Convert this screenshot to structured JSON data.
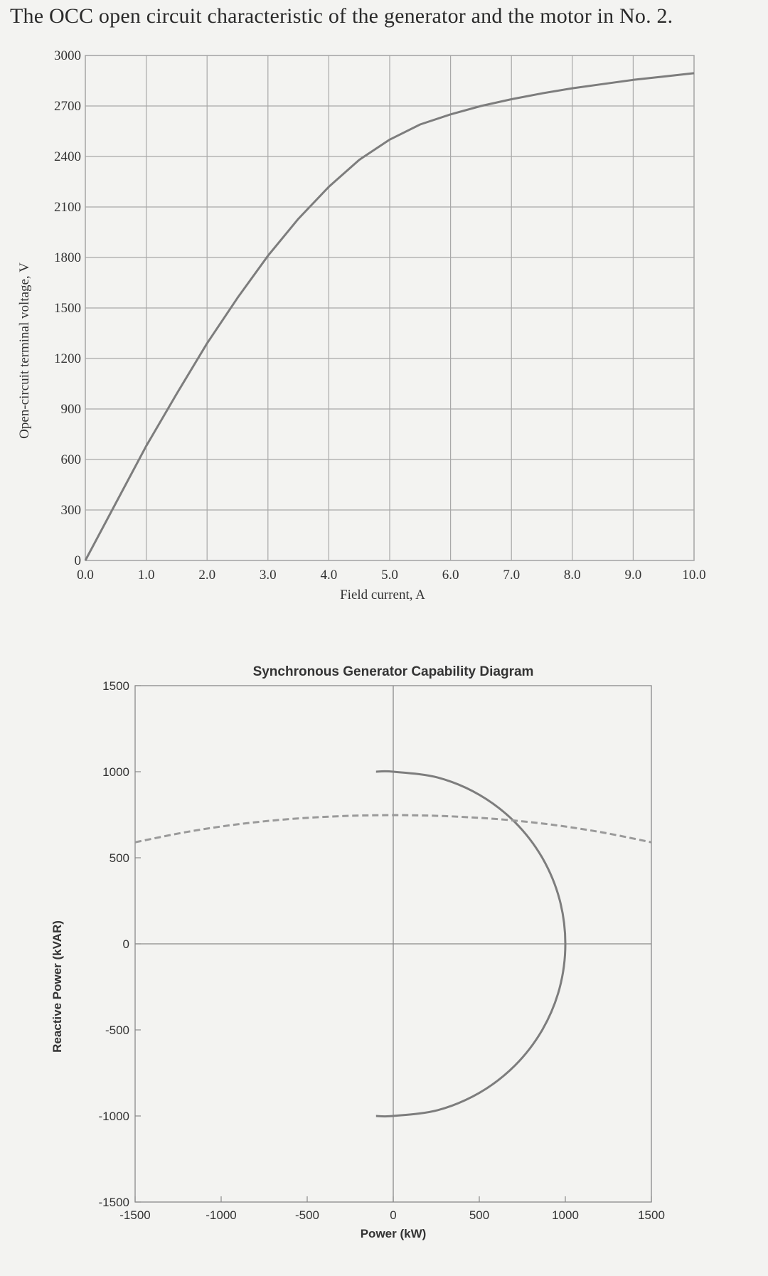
{
  "page": {
    "title": "The OCC open circuit characteristic of the generator and the motor in No. 2."
  },
  "chart_data": [
    {
      "type": "line",
      "title": "",
      "xlabel": "Field current, A",
      "ylabel": "Open-circuit terminal voltage, V",
      "xlim": [
        0,
        10
      ],
      "ylim": [
        0,
        3000
      ],
      "x_ticks": [
        "0.0",
        "1.0",
        "2.0",
        "3.0",
        "4.0",
        "5.0",
        "6.0",
        "7.0",
        "8.0",
        "9.0",
        "10.0"
      ],
      "y_ticks": [
        "0",
        "300",
        "600",
        "900",
        "1200",
        "1500",
        "1800",
        "2100",
        "2400",
        "2700",
        "3000"
      ],
      "grid": true,
      "series": [
        {
          "x": [
            0,
            0.5,
            1.0,
            1.5,
            2.0,
            2.5,
            3.0,
            3.5,
            4.0,
            4.5,
            5.0,
            5.5,
            6.0,
            6.5,
            7.0,
            7.5,
            8.0,
            8.5,
            9.0,
            9.5,
            10.0
          ],
          "y": [
            0,
            340,
            680,
            990,
            1290,
            1560,
            1810,
            2030,
            2220,
            2380,
            2500,
            2590,
            2650,
            2700,
            2740,
            2775,
            2805,
            2830,
            2855,
            2875,
            2895
          ],
          "color": "#7d7d7d"
        }
      ]
    },
    {
      "type": "line",
      "title": "Synchronous Generator Capability Diagram",
      "xlabel": "Power (kW)",
      "ylabel": "Reactive Power (kVAR)",
      "xlim": [
        -1500,
        1500
      ],
      "ylim": [
        -1500,
        1500
      ],
      "x_ticks": [
        "-1500",
        "-1000",
        "-500",
        "0",
        "500",
        "1000",
        "1500"
      ],
      "y_ticks": [
        "-1500",
        "-1000",
        "-500",
        "0",
        "500",
        "1000",
        "1500"
      ],
      "grid": false,
      "series": [
        {
          "style": "solid",
          "color": "#7d7d7d",
          "x": [
            -100,
            0,
            259,
            500,
            707,
            866,
            966,
            1000,
            966,
            866,
            707,
            500,
            259,
            0,
            -100
          ],
          "y": [
            1000,
            1000,
            966,
            866,
            707,
            500,
            259,
            0,
            -259,
            -500,
            -707,
            -866,
            -966,
            -1000,
            -1000
          ]
        },
        {
          "style": "dashed",
          "color": "#9a9a9a",
          "x": [
            -1500,
            -1200,
            -900,
            -600,
            -300,
            0,
            300,
            600,
            900,
            1200,
            1500
          ],
          "y": [
            590,
            650,
            695,
            725,
            742,
            748,
            742,
            725,
            695,
            650,
            590
          ]
        }
      ]
    }
  ]
}
